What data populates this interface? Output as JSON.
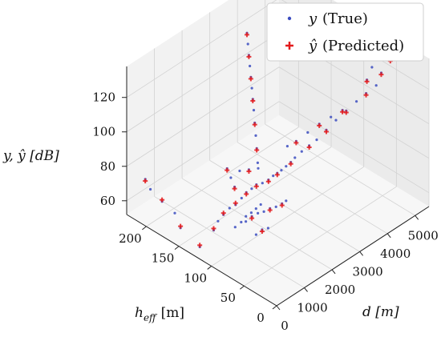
{
  "chart_data": {
    "type": "scatter",
    "projection": "3d",
    "title": "",
    "axes": {
      "x": {
        "label": "d [m]",
        "ticks": [
          "0",
          "1000",
          "2000",
          "3000",
          "4000",
          "5000"
        ],
        "lim": [
          0,
          5500
        ]
      },
      "y": {
        "label": "h_eff [m]",
        "label_main": "h",
        "label_sub": "eff",
        "label_unit": "[m]",
        "ticks": [
          "0",
          "50",
          "100",
          "150",
          "200"
        ],
        "lim": [
          0,
          230
        ]
      },
      "z": {
        "label": "y, ŷ [dB]",
        "ticks": [
          "60",
          "80",
          "100",
          "120"
        ],
        "lim": [
          52,
          138
        ]
      }
    },
    "grid": true,
    "legend": {
      "placement": "top-right",
      "entries": [
        {
          "symbol": "y",
          "text": "(True)",
          "marker": "dot",
          "color": "#3b4cc0"
        },
        {
          "symbol": "ŷ",
          "text": "(Predicted)",
          "marker": "plus",
          "color": "#e31a1c"
        }
      ]
    },
    "series": [
      {
        "name": "y (True)",
        "color": "#3b4cc0",
        "marker": "dot",
        "points": [
          [
            80,
            100,
            72
          ],
          [
            120,
            95,
            78
          ],
          [
            200,
            90,
            82
          ],
          [
            300,
            85,
            86
          ],
          [
            400,
            80,
            88
          ],
          [
            500,
            75,
            92
          ],
          [
            600,
            72,
            95
          ],
          [
            700,
            68,
            97
          ],
          [
            800,
            65,
            99
          ],
          [
            900,
            60,
            100
          ],
          [
            1000,
            55,
            102
          ],
          [
            1100,
            52,
            104
          ],
          [
            1200,
            50,
            105
          ],
          [
            300,
            60,
            84
          ],
          [
            400,
            55,
            87
          ],
          [
            500,
            50,
            89
          ],
          [
            600,
            45,
            90
          ],
          [
            700,
            40,
            92
          ],
          [
            200,
            40,
            82
          ],
          [
            300,
            35,
            85
          ],
          [
            400,
            30,
            86
          ],
          [
            800,
            35,
            93
          ],
          [
            900,
            30,
            95
          ],
          [
            1000,
            28,
            96
          ],
          [
            150,
            70,
            80
          ],
          [
            250,
            65,
            83
          ],
          [
            350,
            62,
            86
          ],
          [
            450,
            58,
            88
          ],
          [
            550,
            55,
            90
          ],
          [
            650,
            52,
            92
          ],
          [
            1300,
            48,
            106
          ],
          [
            1400,
            45,
            108
          ],
          [
            1500,
            42,
            110
          ],
          [
            1600,
            40,
            112
          ],
          [
            1800,
            38,
            114
          ],
          [
            2000,
            35,
            116
          ],
          [
            2200,
            32,
            118
          ],
          [
            2500,
            30,
            121
          ],
          [
            2800,
            28,
            124
          ],
          [
            3100,
            25,
            127
          ],
          [
            3400,
            22,
            130
          ],
          [
            3700,
            20,
            132
          ],
          [
            1200,
            80,
            104
          ],
          [
            1400,
            90,
            108
          ],
          [
            1600,
            100,
            111
          ],
          [
            1800,
            110,
            114
          ],
          [
            2000,
            120,
            117
          ],
          [
            2200,
            130,
            119
          ],
          [
            2400,
            140,
            121
          ],
          [
            2600,
            150,
            123
          ],
          [
            2800,
            160,
            125
          ],
          [
            3000,
            170,
            127
          ],
          [
            3200,
            180,
            129
          ],
          [
            3400,
            190,
            131
          ],
          [
            1800,
            60,
            112
          ],
          [
            2000,
            55,
            114
          ],
          [
            2300,
            50,
            117
          ],
          [
            2600,
            45,
            120
          ],
          [
            2900,
            40,
            122
          ],
          [
            3200,
            35,
            124
          ],
          [
            4200,
            40,
            130
          ],
          [
            4500,
            45,
            133
          ],
          [
            4800,
            50,
            135
          ],
          [
            4300,
            30,
            128
          ],
          [
            4600,
            35,
            131
          ],
          [
            5000,
            38,
            134
          ],
          [
            100,
            180,
            70
          ],
          [
            150,
            200,
            72
          ],
          [
            200,
            210,
            75
          ],
          [
            90,
            160,
            68
          ],
          [
            60,
            150,
            62
          ],
          [
            50,
            120,
            58
          ],
          [
            700,
            100,
            96
          ],
          [
            800,
            110,
            98
          ],
          [
            900,
            95,
            99
          ],
          [
            1000,
            85,
            101
          ],
          [
            1100,
            75,
            103
          ],
          [
            600,
            90,
            94
          ]
        ]
      },
      {
        "name": "ŷ (Predicted)",
        "color": "#e31a1c",
        "marker": "plus",
        "points": [
          [
            80,
            100,
            73
          ],
          [
            200,
            90,
            83
          ],
          [
            400,
            80,
            89
          ],
          [
            600,
            72,
            94
          ],
          [
            800,
            65,
            98
          ],
          [
            1000,
            55,
            101
          ],
          [
            1200,
            50,
            104
          ],
          [
            400,
            55,
            86
          ],
          [
            700,
            40,
            91
          ],
          [
            300,
            35,
            84
          ],
          [
            900,
            30,
            94
          ],
          [
            1500,
            42,
            109
          ],
          [
            2000,
            35,
            115
          ],
          [
            2500,
            30,
            120
          ],
          [
            3100,
            25,
            126
          ],
          [
            3700,
            20,
            131
          ],
          [
            1400,
            90,
            107
          ],
          [
            1800,
            110,
            113
          ],
          [
            2200,
            130,
            118
          ],
          [
            2600,
            150,
            122
          ],
          [
            3000,
            170,
            126
          ],
          [
            3400,
            190,
            130
          ],
          [
            2000,
            55,
            113
          ],
          [
            2600,
            45,
            119
          ],
          [
            3200,
            35,
            123
          ],
          [
            4200,
            40,
            129
          ],
          [
            4800,
            50,
            134
          ],
          [
            4600,
            35,
            130
          ],
          [
            5000,
            38,
            133
          ],
          [
            100,
            180,
            71
          ],
          [
            200,
            210,
            74
          ],
          [
            60,
            150,
            63
          ],
          [
            50,
            120,
            59
          ],
          [
            800,
            110,
            97
          ],
          [
            1000,
            85,
            100
          ],
          [
            600,
            90,
            93
          ]
        ]
      }
    ]
  }
}
